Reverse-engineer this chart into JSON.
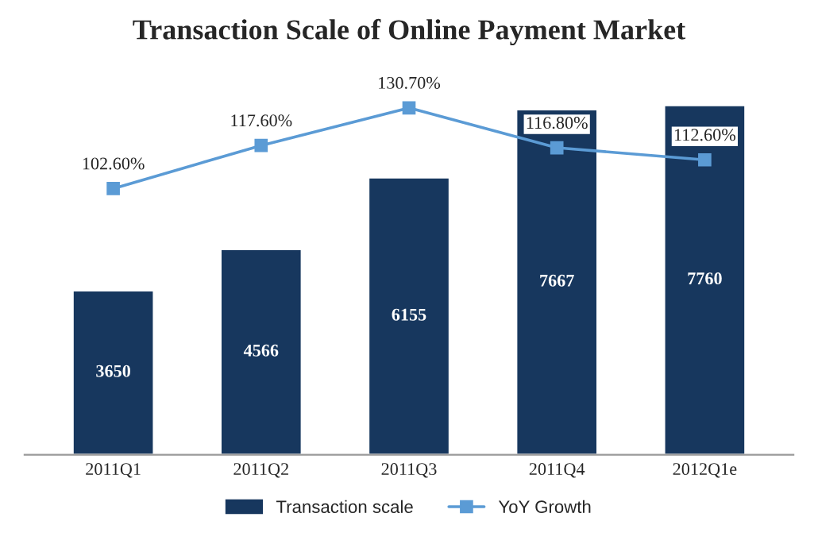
{
  "chart_data": {
    "type": "bar",
    "title": "Transaction Scale of Online Payment Market",
    "categories": [
      "2011Q1",
      "2011Q2",
      "2011Q3",
      "2011Q4",
      "2012Q1e"
    ],
    "series": [
      {
        "name": "Transaction scale",
        "color": "#17375e",
        "values": [
          3650,
          4566,
          6155,
          7667,
          7760
        ],
        "value_labels": [
          "3650",
          "4566",
          "6155",
          "7667",
          "7760"
        ]
      },
      {
        "name": "YoY Growth",
        "type": "line",
        "axis": "y2",
        "color": "#5b9bd5",
        "marker": "square",
        "values": [
          102.6,
          117.6,
          130.7,
          116.8,
          112.6
        ],
        "value_labels": [
          "102.60%",
          "117.60%",
          "130.70%",
          "116.80%",
          "112.60%"
        ]
      }
    ],
    "legend": "bottom",
    "grid": false
  }
}
